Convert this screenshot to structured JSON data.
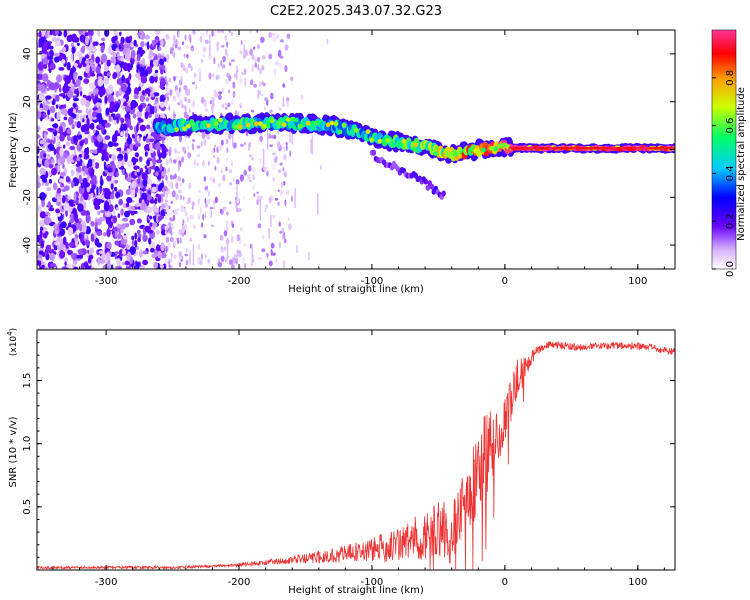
{
  "title": "C2E2.2025.343.07.32.G23",
  "chart_data": [
    {
      "type": "heatmap",
      "ylabel": "Frequency (Hz)",
      "xlabel": "Height of straight line (km)",
      "xlim": [
        -352,
        128
      ],
      "ylim": [
        -50,
        50
      ],
      "xticks": [
        -300,
        -200,
        -100,
        0,
        100
      ],
      "yticks": [
        -40,
        -20,
        0,
        20,
        40
      ],
      "colorbar": {
        "label": "Normalized spectral amplitude",
        "range": [
          0,
          1
        ],
        "ticks": [
          0.0,
          0.2,
          0.4,
          0.6,
          0.8
        ],
        "tick_labels": [
          "0.0",
          "0.2",
          "0.4",
          "0.6",
          "0.8"
        ]
      },
      "features": [
        {
          "name": "noise-region",
          "x_range": [
            -352,
            -255
          ],
          "freq_range": [
            -50,
            50
          ],
          "amplitude": 0.15
        },
        {
          "name": "sparse-noise",
          "x_range": [
            -255,
            -160
          ],
          "freq_range": [
            -50,
            50
          ],
          "amplitude": 0.05
        },
        {
          "name": "main-tone",
          "x": [
            -262,
            -240,
            -200,
            -160,
            -130,
            -110,
            -90,
            -60,
            -40,
            -20,
            0,
            10,
            128
          ],
          "freq": [
            9,
            10,
            11,
            11,
            10,
            7,
            4,
            1,
            -2,
            0,
            1,
            0.5,
            0.5
          ],
          "amplitude": [
            0.4,
            0.5,
            0.5,
            0.5,
            0.45,
            0.45,
            0.5,
            0.6,
            0.7,
            0.8,
            0.9,
            0.95,
            0.95
          ]
        },
        {
          "name": "secondary-branch",
          "x": [
            -100,
            -80,
            -60,
            -45
          ],
          "freq": [
            -2,
            -8,
            -14,
            -20
          ],
          "amplitude": 0.2
        }
      ]
    },
    {
      "type": "line",
      "ylabel": "SNR (10 * v/v)",
      "ylabel_scale": "(x10",
      "ylabel_exponent": "4",
      "xlabel": "Height of straight line (km)",
      "xlim": [
        -352,
        128
      ],
      "ylim": [
        0,
        1.9
      ],
      "xticks": [
        -300,
        -200,
        -100,
        0,
        100
      ],
      "yticks": [
        0.5,
        1.0,
        1.5
      ],
      "ytick_labels": [
        "0.5",
        "1.0",
        "1.5"
      ],
      "series": [
        {
          "name": "SNR",
          "color": "#ee3333",
          "x": [
            -352,
            -300,
            -250,
            -220,
            -200,
            -180,
            -160,
            -140,
            -120,
            -100,
            -80,
            -60,
            -50,
            -40,
            -30,
            -20,
            -15,
            -10,
            -5,
            0,
            5,
            10,
            15,
            20,
            25,
            30,
            40,
            60,
            80,
            100,
            110,
            120,
            128
          ],
          "y": [
            0.02,
            0.02,
            0.02,
            0.03,
            0.04,
            0.06,
            0.08,
            0.1,
            0.13,
            0.16,
            0.2,
            0.28,
            0.32,
            0.3,
            0.55,
            0.75,
            0.9,
            1.0,
            1.1,
            1.2,
            1.35,
            1.5,
            1.6,
            1.68,
            1.74,
            1.78,
            1.78,
            1.76,
            1.78,
            1.77,
            1.76,
            1.74,
            1.73
          ],
          "noise_amplitude": [
            0.01,
            0.01,
            0.01,
            0.01,
            0.015,
            0.02,
            0.03,
            0.05,
            0.07,
            0.1,
            0.14,
            0.2,
            0.25,
            0.25,
            0.3,
            0.35,
            0.35,
            0.3,
            0.25,
            0.2,
            0.2,
            0.18,
            0.1,
            0.06,
            0.04,
            0.03,
            0.03,
            0.03,
            0.03,
            0.03,
            0.03,
            0.03,
            0.03
          ]
        }
      ]
    }
  ]
}
